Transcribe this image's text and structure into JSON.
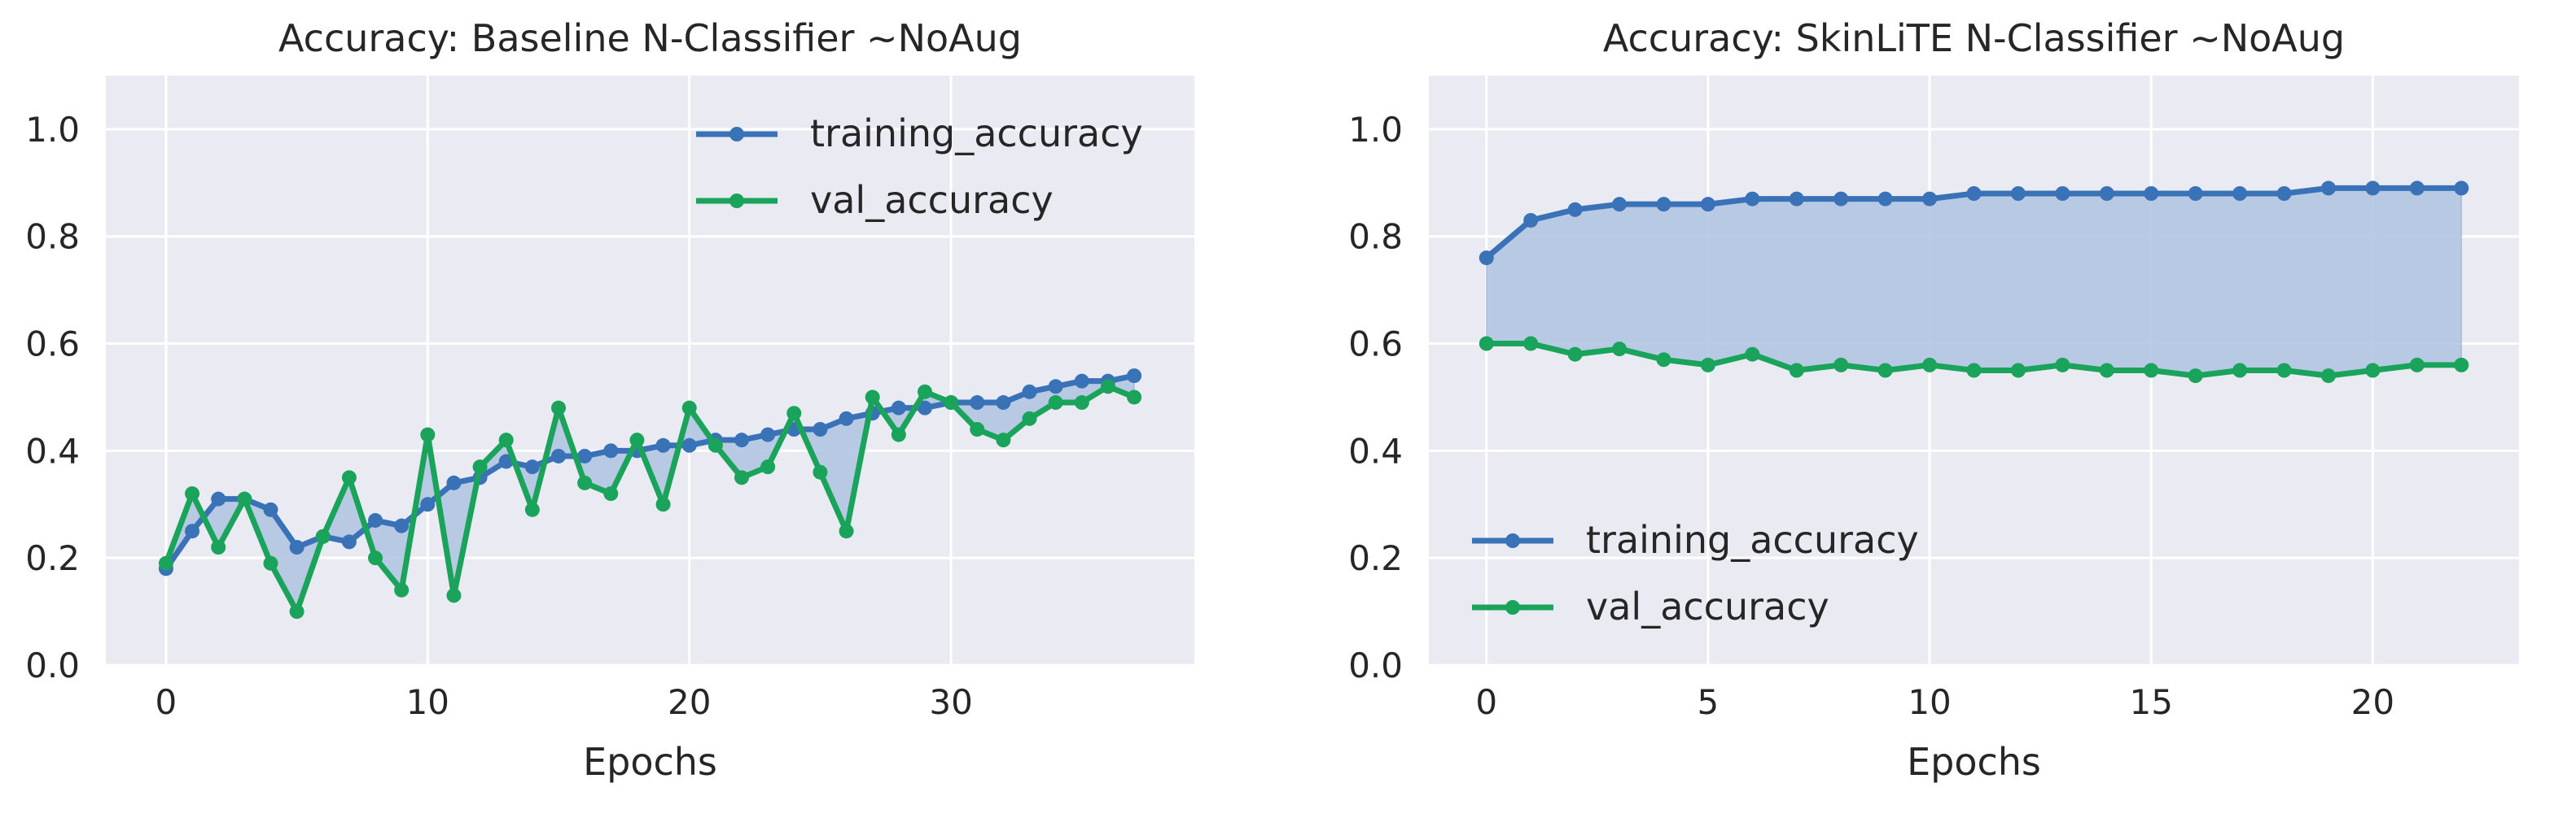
{
  "colors": {
    "training": "#3a72b8",
    "validation": "#1aa35a",
    "fill": "#b3c5e2",
    "axes_bg": "#eaeaf2",
    "grid": "#ffffff"
  },
  "chart_data": [
    {
      "type": "line",
      "title": "Accuracy: Baseline N-Classifier ~NoAug",
      "xlabel": "Epochs",
      "ylabel": "",
      "xlim": [
        -2.3,
        39.3
      ],
      "ylim": [
        0.0,
        1.1
      ],
      "xticks": [
        0,
        10,
        20,
        30
      ],
      "yticks": [
        0.0,
        0.2,
        0.4,
        0.6,
        0.8,
        1.0
      ],
      "xtick_labels": [
        "0",
        "10",
        "20",
        "30"
      ],
      "ytick_labels": [
        "0.0",
        "0.2",
        "0.4",
        "0.6",
        "0.8",
        "1.0"
      ],
      "grid": true,
      "legend_position": "top-right",
      "fill_between": true,
      "series": [
        {
          "name": "training_accuracy",
          "color_key": "training",
          "x": [
            0,
            1,
            2,
            3,
            4,
            5,
            6,
            7,
            8,
            9,
            10,
            11,
            12,
            13,
            14,
            15,
            16,
            17,
            18,
            19,
            20,
            21,
            22,
            23,
            24,
            25,
            26,
            27,
            28,
            29,
            30,
            31,
            32,
            33,
            34,
            35,
            36,
            37
          ],
          "values": [
            0.18,
            0.25,
            0.31,
            0.31,
            0.29,
            0.22,
            0.24,
            0.23,
            0.27,
            0.26,
            0.3,
            0.34,
            0.35,
            0.38,
            0.37,
            0.39,
            0.39,
            0.4,
            0.4,
            0.41,
            0.41,
            0.42,
            0.42,
            0.43,
            0.44,
            0.44,
            0.46,
            0.47,
            0.48,
            0.48,
            0.49,
            0.49,
            0.49,
            0.51,
            0.52,
            0.53,
            0.53,
            0.54
          ]
        },
        {
          "name": "val_accuracy",
          "color_key": "validation",
          "x": [
            0,
            1,
            2,
            3,
            4,
            5,
            6,
            7,
            8,
            9,
            10,
            11,
            12,
            13,
            14,
            15,
            16,
            17,
            18,
            19,
            20,
            21,
            22,
            23,
            24,
            25,
            26,
            27,
            28,
            29,
            30,
            31,
            32,
            33,
            34,
            35,
            36,
            37
          ],
          "values": [
            0.19,
            0.32,
            0.22,
            0.31,
            0.19,
            0.1,
            0.24,
            0.35,
            0.2,
            0.14,
            0.43,
            0.13,
            0.37,
            0.42,
            0.29,
            0.48,
            0.34,
            0.32,
            0.42,
            0.3,
            0.48,
            0.41,
            0.35,
            0.37,
            0.47,
            0.36,
            0.25,
            0.5,
            0.43,
            0.51,
            0.49,
            0.44,
            0.42,
            0.46,
            0.49,
            0.49,
            0.52,
            0.5
          ]
        }
      ]
    },
    {
      "type": "line",
      "title": "Accuracy: SkinLiTE N-Classifier ~NoAug",
      "xlabel": "Epochs",
      "ylabel": "",
      "xlim": [
        -1.3,
        23.3
      ],
      "ylim": [
        0.0,
        1.1
      ],
      "xticks": [
        0,
        5,
        10,
        15,
        20
      ],
      "yticks": [
        0.0,
        0.2,
        0.4,
        0.6,
        0.8,
        1.0
      ],
      "xtick_labels": [
        "0",
        "5",
        "10",
        "15",
        "20"
      ],
      "ytick_labels": [
        "0.0",
        "0.2",
        "0.4",
        "0.6",
        "0.8",
        "1.0"
      ],
      "grid": true,
      "legend_position": "lower-left",
      "fill_between": true,
      "series": [
        {
          "name": "training_accuracy",
          "color_key": "training",
          "x": [
            0,
            1,
            2,
            3,
            4,
            5,
            6,
            7,
            8,
            9,
            10,
            11,
            12,
            13,
            14,
            15,
            16,
            17,
            18,
            19,
            20,
            21,
            22
          ],
          "values": [
            0.76,
            0.83,
            0.85,
            0.86,
            0.86,
            0.86,
            0.87,
            0.87,
            0.87,
            0.87,
            0.87,
            0.88,
            0.88,
            0.88,
            0.88,
            0.88,
            0.88,
            0.88,
            0.88,
            0.89,
            0.89,
            0.89,
            0.89
          ]
        },
        {
          "name": "val_accuracy",
          "color_key": "validation",
          "x": [
            0,
            1,
            2,
            3,
            4,
            5,
            6,
            7,
            8,
            9,
            10,
            11,
            12,
            13,
            14,
            15,
            16,
            17,
            18,
            19,
            20,
            21,
            22
          ],
          "values": [
            0.6,
            0.6,
            0.58,
            0.59,
            0.57,
            0.56,
            0.58,
            0.55,
            0.56,
            0.55,
            0.56,
            0.55,
            0.55,
            0.56,
            0.55,
            0.55,
            0.54,
            0.55,
            0.55,
            0.54,
            0.55,
            0.56,
            0.56
          ]
        }
      ]
    }
  ]
}
